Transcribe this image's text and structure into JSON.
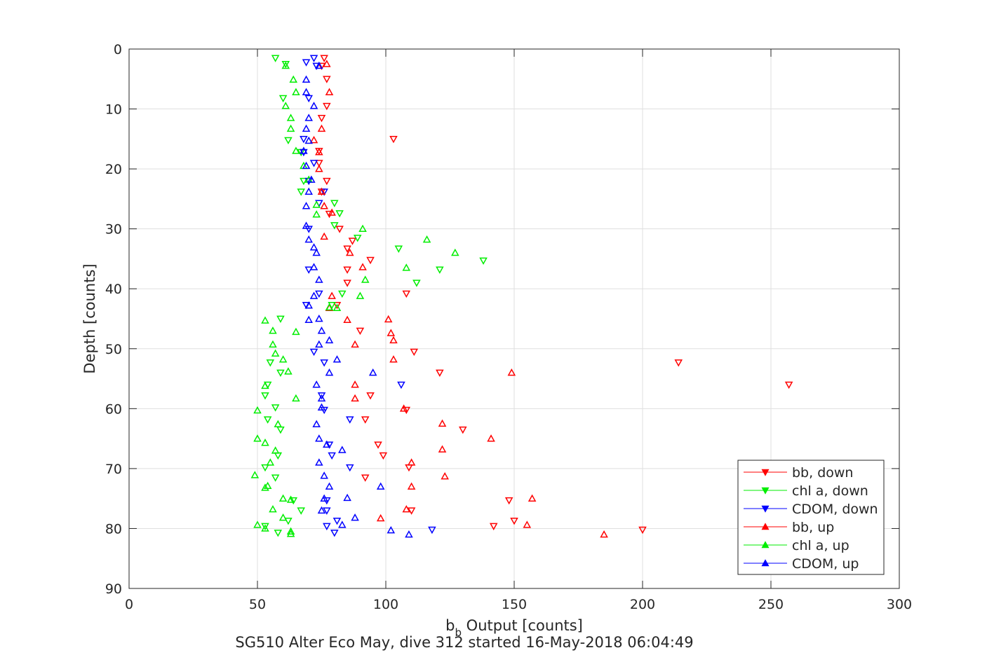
{
  "chart_data": {
    "type": "scatter",
    "title": "SG510 Alter Eco May, dive 312 started 16-May-2018 06:04:49",
    "xlabel_main": "b",
    "xlabel_sub": "b",
    "xlabel_rest": " Output [counts]",
    "ylabel": "Depth [counts]",
    "xlim": [
      0,
      300
    ],
    "ylim": [
      0,
      90
    ],
    "y_reversed": true,
    "grid": true,
    "legend_position": "bottom-right",
    "x_ticks": [
      0,
      50,
      100,
      150,
      200,
      250,
      300
    ],
    "y_ticks": [
      0,
      10,
      20,
      30,
      40,
      50,
      60,
      70,
      80,
      90
    ],
    "series": [
      {
        "name": "bb, down",
        "color": "#ff0000",
        "marker": "triangle-down",
        "points": [
          [
            76,
            1.5
          ],
          [
            75,
            2.8
          ],
          [
            77,
            5.0
          ],
          [
            77,
            9.5
          ],
          [
            75,
            11.5
          ],
          [
            103,
            15.0
          ],
          [
            74,
            17.0
          ],
          [
            74,
            19.0
          ],
          [
            77,
            22.0
          ],
          [
            75,
            23.8
          ],
          [
            78,
            27.5
          ],
          [
            82,
            30.0
          ],
          [
            87,
            32.0
          ],
          [
            85,
            33.3
          ],
          [
            94,
            35.2
          ],
          [
            85,
            36.8
          ],
          [
            85,
            39.0
          ],
          [
            108,
            40.8
          ],
          [
            81,
            42.7
          ],
          [
            90,
            47.0
          ],
          [
            111,
            50.5
          ],
          [
            214,
            52.3
          ],
          [
            121,
            54.0
          ],
          [
            257,
            56.0
          ],
          [
            94,
            57.8
          ],
          [
            108,
            60.2
          ],
          [
            92,
            61.8
          ],
          [
            130,
            63.5
          ],
          [
            97,
            66.0
          ],
          [
            99,
            67.8
          ],
          [
            109,
            69.8
          ],
          [
            92,
            71.5
          ],
          [
            148,
            75.3
          ],
          [
            110,
            77.0
          ],
          [
            150,
            78.7
          ],
          [
            142,
            79.6
          ],
          [
            200,
            80.2
          ]
        ]
      },
      {
        "name": "chl a, down",
        "color": "#00ee00",
        "marker": "triangle-down",
        "points": [
          [
            57,
            1.5
          ],
          [
            61,
            2.5
          ],
          [
            60,
            8.2
          ],
          [
            62,
            15.2
          ],
          [
            67,
            17.2
          ],
          [
            68,
            22.0
          ],
          [
            67,
            23.8
          ],
          [
            80,
            25.7
          ],
          [
            82,
            27.4
          ],
          [
            80,
            29.4
          ],
          [
            89,
            31.5
          ],
          [
            105,
            33.3
          ],
          [
            138,
            35.3
          ],
          [
            121,
            36.8
          ],
          [
            112,
            39.0
          ],
          [
            83,
            40.8
          ],
          [
            79,
            42.7
          ],
          [
            59,
            45.0
          ],
          [
            55,
            52.3
          ],
          [
            59,
            54.0
          ],
          [
            54,
            56.0
          ],
          [
            53,
            57.8
          ],
          [
            57,
            59.8
          ],
          [
            54,
            61.8
          ],
          [
            59,
            63.5
          ],
          [
            58,
            67.8
          ],
          [
            53,
            69.8
          ],
          [
            57,
            71.5
          ],
          [
            64,
            75.3
          ],
          [
            67,
            77.0
          ],
          [
            62,
            78.7
          ],
          [
            53,
            79.6
          ],
          [
            58,
            80.7
          ]
        ]
      },
      {
        "name": "CDOM, down",
        "color": "#0000ff",
        "marker": "triangle-down",
        "points": [
          [
            72,
            1.5
          ],
          [
            73,
            2.8
          ],
          [
            69,
            2.2
          ],
          [
            70,
            8.2
          ],
          [
            68,
            15.0
          ],
          [
            68,
            17.2
          ],
          [
            72,
            19.0
          ],
          [
            70,
            22.0
          ],
          [
            76,
            23.8
          ],
          [
            74,
            25.7
          ],
          [
            70,
            30.0
          ],
          [
            70,
            36.8
          ],
          [
            74,
            40.8
          ],
          [
            69,
            42.7
          ],
          [
            72,
            50.5
          ],
          [
            76,
            52.3
          ],
          [
            106,
            56.0
          ],
          [
            75,
            57.8
          ],
          [
            76,
            60.2
          ],
          [
            86,
            61.8
          ],
          [
            78,
            66.0
          ],
          [
            79,
            67.8
          ],
          [
            86,
            69.8
          ],
          [
            77,
            75.3
          ],
          [
            77,
            77.0
          ],
          [
            81,
            78.7
          ],
          [
            77,
            79.6
          ],
          [
            80,
            80.7
          ],
          [
            118,
            80.2
          ]
        ]
      },
      {
        "name": "bb, up",
        "color": "#ff0000",
        "marker": "triangle-up",
        "points": [
          [
            77,
            2.5
          ],
          [
            78,
            7.2
          ],
          [
            75,
            13.3
          ],
          [
            72,
            15.2
          ],
          [
            74,
            17.2
          ],
          [
            74,
            20.0
          ],
          [
            75,
            23.8
          ],
          [
            76,
            26.2
          ],
          [
            79,
            27.3
          ],
          [
            76,
            31.3
          ],
          [
            86,
            34.0
          ],
          [
            91,
            36.4
          ],
          [
            79,
            41.2
          ],
          [
            78,
            43.2
          ],
          [
            85,
            45.2
          ],
          [
            101,
            45.1
          ],
          [
            102,
            47.4
          ],
          [
            103,
            48.6
          ],
          [
            88,
            49.3
          ],
          [
            103,
            51.8
          ],
          [
            149,
            54.0
          ],
          [
            88,
            56.0
          ],
          [
            88,
            58.3
          ],
          [
            107,
            60.0
          ],
          [
            122,
            62.5
          ],
          [
            141,
            65.0
          ],
          [
            122,
            66.8
          ],
          [
            110,
            69.0
          ],
          [
            123,
            71.3
          ],
          [
            110,
            73.0
          ],
          [
            157,
            75.0
          ],
          [
            108,
            76.8
          ],
          [
            98,
            78.3
          ],
          [
            155,
            79.4
          ],
          [
            185,
            81.0
          ]
        ]
      },
      {
        "name": "chl a, up",
        "color": "#00ee00",
        "marker": "triangle-up",
        "points": [
          [
            61,
            2.8
          ],
          [
            64,
            5.1
          ],
          [
            65,
            7.2
          ],
          [
            61,
            9.5
          ],
          [
            63,
            11.5
          ],
          [
            63,
            13.3
          ],
          [
            65,
            17.0
          ],
          [
            68,
            19.5
          ],
          [
            70,
            21.8
          ],
          [
            73,
            26.0
          ],
          [
            73,
            27.6
          ],
          [
            91,
            30.0
          ],
          [
            116,
            31.8
          ],
          [
            127,
            34.0
          ],
          [
            108,
            36.5
          ],
          [
            92,
            38.5
          ],
          [
            90,
            41.2
          ],
          [
            78,
            43.1
          ],
          [
            81,
            43.2
          ],
          [
            53,
            45.3
          ],
          [
            56,
            47.0
          ],
          [
            65,
            47.2
          ],
          [
            56,
            49.3
          ],
          [
            57,
            50.8
          ],
          [
            60,
            51.8
          ],
          [
            62,
            53.8
          ],
          [
            53,
            56.2
          ],
          [
            65,
            58.3
          ],
          [
            50,
            60.3
          ],
          [
            58,
            62.6
          ],
          [
            50,
            65.0
          ],
          [
            53,
            65.7
          ],
          [
            57,
            67.0
          ],
          [
            55,
            69.0
          ],
          [
            49,
            71.1
          ],
          [
            54,
            72.9
          ],
          [
            53,
            73.2
          ],
          [
            60,
            75.0
          ],
          [
            63,
            75.2
          ],
          [
            56,
            76.8
          ],
          [
            60,
            78.2
          ],
          [
            63,
            80.5
          ],
          [
            50,
            79.4
          ],
          [
            53,
            80.0
          ],
          [
            63,
            80.9
          ]
        ]
      },
      {
        "name": "CDOM, up",
        "color": "#0000ff",
        "marker": "triangle-up",
        "points": [
          [
            74,
            2.8
          ],
          [
            69,
            5.1
          ],
          [
            69,
            7.2
          ],
          [
            72,
            9.5
          ],
          [
            70,
            11.5
          ],
          [
            69,
            13.3
          ],
          [
            70,
            15.3
          ],
          [
            68,
            17.0
          ],
          [
            69,
            19.5
          ],
          [
            71,
            21.8
          ],
          [
            70,
            23.8
          ],
          [
            69,
            26.2
          ],
          [
            69,
            29.5
          ],
          [
            70,
            31.8
          ],
          [
            72,
            33.1
          ],
          [
            73,
            34.0
          ],
          [
            72,
            36.4
          ],
          [
            74,
            38.5
          ],
          [
            72,
            41.2
          ],
          [
            70,
            42.8
          ],
          [
            70,
            45.2
          ],
          [
            74,
            45.0
          ],
          [
            75,
            47.0
          ],
          [
            78,
            48.6
          ],
          [
            74,
            49.3
          ],
          [
            81,
            51.8
          ],
          [
            78,
            54.0
          ],
          [
            95,
            54.0
          ],
          [
            73,
            56.0
          ],
          [
            75,
            58.3
          ],
          [
            75,
            59.8
          ],
          [
            73,
            62.6
          ],
          [
            74,
            65.0
          ],
          [
            77,
            66.0
          ],
          [
            83,
            66.9
          ],
          [
            74,
            69.0
          ],
          [
            76,
            71.2
          ],
          [
            78,
            73.0
          ],
          [
            98,
            73.0
          ],
          [
            76,
            75.0
          ],
          [
            85,
            74.9
          ],
          [
            75,
            77.0
          ],
          [
            88,
            78.2
          ],
          [
            83,
            79.4
          ],
          [
            102,
            80.3
          ],
          [
            109,
            81.0
          ]
        ]
      }
    ]
  }
}
